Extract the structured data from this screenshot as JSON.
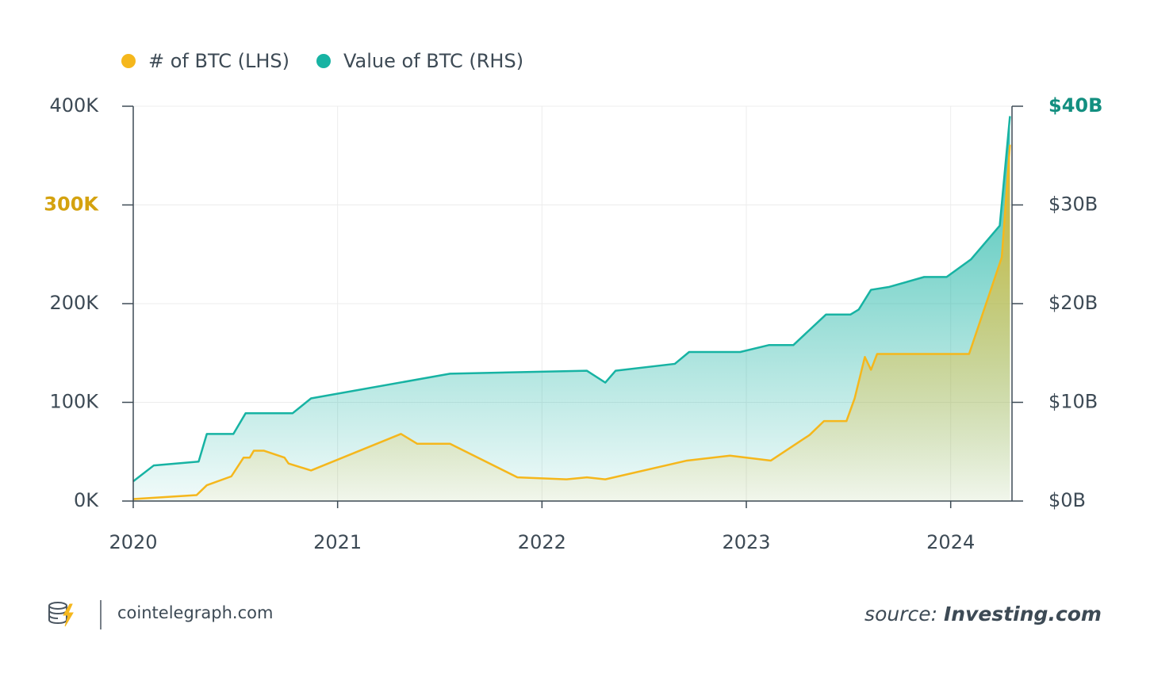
{
  "chart_data": {
    "type": "area",
    "xlim": [
      2020,
      2024.3
    ],
    "xticks": [
      2020,
      2021,
      2022,
      2023,
      2024
    ],
    "ylim": [
      0,
      400000
    ],
    "yticks": [
      {
        "value": 0,
        "label": "0K"
      },
      {
        "value": 100000,
        "label": "100K"
      },
      {
        "value": 200000,
        "label": "200K"
      },
      {
        "value": 300000,
        "label": "300K",
        "color": "#d4a20f"
      },
      {
        "value": 400000,
        "label": "400K"
      }
    ],
    "y2lim": [
      0,
      40
    ],
    "y2ticks": [
      {
        "value": 0,
        "label": "$0B"
      },
      {
        "value": 10,
        "label": "$10B"
      },
      {
        "value": 20,
        "label": "$20B"
      },
      {
        "value": 30,
        "label": "$30B"
      },
      {
        "value": 40,
        "label": "$40B",
        "color": "#138f80"
      }
    ],
    "grid": true,
    "series": [
      {
        "name": "Value of BTC (RHS)",
        "color": "#17b3a3",
        "axis": "y2",
        "x": [
          2020.0,
          2020.1,
          2020.32,
          2020.36,
          2020.49,
          2020.55,
          2020.78,
          2020.87,
          2021.55,
          2022.22,
          2022.31,
          2022.36,
          2022.65,
          2022.72,
          2022.97,
          2023.11,
          2023.23,
          2023.39,
          2023.51,
          2023.55,
          2023.61,
          2023.7,
          2023.87,
          2023.98,
          2024.1,
          2024.24,
          2024.29
        ],
        "values": [
          2.0,
          3.6,
          4.0,
          6.8,
          6.8,
          8.9,
          8.9,
          10.4,
          12.9,
          13.2,
          12.0,
          13.2,
          13.9,
          15.1,
          15.1,
          15.8,
          15.8,
          18.9,
          18.9,
          19.4,
          21.4,
          21.7,
          22.7,
          22.7,
          24.5,
          27.9,
          39.0
        ]
      },
      {
        "name": "# of BTC (LHS)",
        "color": "#f5b71c",
        "axis": "y",
        "x": [
          2020.0,
          2020.31,
          2020.36,
          2020.48,
          2020.54,
          2020.57,
          2020.59,
          2020.64,
          2020.74,
          2020.76,
          2020.87,
          2021.31,
          2021.39,
          2021.55,
          2021.88,
          2022.12,
          2022.22,
          2022.31,
          2022.71,
          2022.92,
          2023.12,
          2023.31,
          2023.38,
          2023.49,
          2023.53,
          2023.58,
          2023.61,
          2023.64,
          2024.09,
          2024.25,
          2024.29
        ],
        "values": [
          2000,
          6000,
          16000,
          25000,
          44000,
          44000,
          51000,
          51000,
          44000,
          38000,
          31000,
          68000,
          58000,
          58000,
          24000,
          22000,
          24000,
          22000,
          41000,
          46000,
          41000,
          67000,
          81000,
          81000,
          104000,
          146000,
          133000,
          149000,
          149000,
          247000,
          361000
        ]
      }
    ]
  },
  "footer": {
    "site": "cointelegraph.com",
    "source_prefix": "source:",
    "source": "Investing.com"
  }
}
